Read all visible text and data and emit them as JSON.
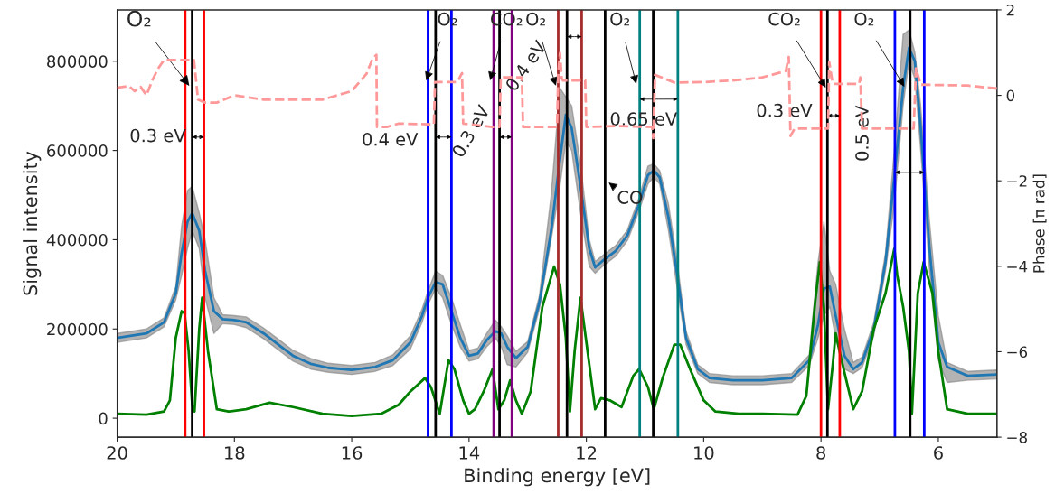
{
  "chart_data": {
    "type": "line",
    "xlabel": "Binding energy [eV]",
    "ylabel": "Signal intensity",
    "y2label": "Phase [π rad]",
    "xlim": [
      20,
      5
    ],
    "xticks": [
      20,
      18,
      16,
      14,
      12,
      10,
      8,
      6
    ],
    "ylim": [
      -42500,
      915000
    ],
    "yticks": [
      0,
      200000,
      400000,
      600000,
      800000
    ],
    "y2lim": [
      -8,
      2
    ],
    "y2ticks": [
      2,
      0,
      {
        "value": -2,
        "label": "−2"
      },
      {
        "value": -4,
        "label": "−4"
      },
      {
        "value": -6,
        "label": "−6"
      },
      {
        "value": -8,
        "label": "−8"
      }
    ],
    "grid": false,
    "series": [
      {
        "color": "#1f77b4",
        "line_style": "solid",
        "x": [
          20.0,
          19.5,
          19.2,
          19.0,
          18.9,
          18.8,
          18.72,
          18.6,
          18.5,
          18.35,
          18.2,
          18.0,
          17.8,
          17.5,
          17.2,
          17.0,
          16.7,
          16.4,
          16.0,
          15.6,
          15.3,
          15.0,
          14.8,
          14.7,
          14.57,
          14.45,
          14.3,
          14.15,
          14.0,
          13.85,
          13.7,
          13.55,
          13.45,
          13.35,
          13.2,
          13.0,
          12.8,
          12.6,
          12.45,
          12.35,
          12.25,
          12.1,
          11.95,
          11.85,
          11.7,
          11.5,
          11.3,
          11.1,
          10.95,
          10.85,
          10.75,
          10.6,
          10.45,
          10.3,
          10.1,
          9.9,
          9.5,
          9.0,
          8.5,
          8.2,
          8.05,
          7.95,
          7.85,
          7.75,
          7.6,
          7.45,
          7.3,
          7.1,
          6.9,
          6.75,
          6.6,
          6.5,
          6.4,
          6.3,
          6.15,
          6.0,
          5.85,
          5.5,
          5.0
        ],
        "values": [
          180000,
          190000,
          215000,
          280000,
          370000,
          440000,
          460000,
          420000,
          330000,
          240000,
          222000,
          220000,
          215000,
          190000,
          160000,
          140000,
          122000,
          113000,
          108000,
          115000,
          130000,
          170000,
          230000,
          270000,
          305000,
          300000,
          240000,
          180000,
          140000,
          145000,
          175000,
          195000,
          190000,
          160000,
          135000,
          160000,
          260000,
          420000,
          580000,
          680000,
          650000,
          520000,
          380000,
          338000,
          355000,
          375000,
          410000,
          480000,
          545000,
          555000,
          540000,
          450000,
          320000,
          180000,
          110000,
          90000,
          85000,
          85000,
          90000,
          130000,
          210000,
          290000,
          295000,
          230000,
          140000,
          110000,
          125000,
          200000,
          350000,
          540000,
          740000,
          830000,
          800000,
          650000,
          380000,
          170000,
          115000,
          95000,
          98000
        ],
        "lower": [
          170000,
          180000,
          205000,
          265000,
          320000,
          380000,
          420000,
          380000,
          270000,
          190000,
          212000,
          210000,
          203000,
          178000,
          148000,
          128000,
          110000,
          103000,
          98000,
          105000,
          118000,
          155000,
          215000,
          255000,
          290000,
          270000,
          210000,
          160000,
          128000,
          133000,
          160000,
          180000,
          160000,
          120000,
          115000,
          148000,
          245000,
          400000,
          520000,
          620000,
          600000,
          460000,
          340000,
          325000,
          343000,
          363000,
          398000,
          465000,
          525000,
          540000,
          525000,
          420000,
          290000,
          165000,
          100000,
          80000,
          75000,
          75000,
          80000,
          118000,
          180000,
          230000,
          250000,
          180000,
          110000,
          100000,
          113000,
          185000,
          330000,
          480000,
          700000,
          800000,
          760000,
          600000,
          330000,
          130000,
          80000,
          85000,
          88000
        ],
        "upper": [
          190000,
          200000,
          225000,
          295000,
          430000,
          510000,
          520000,
          460000,
          400000,
          270000,
          232000,
          230000,
          227000,
          202000,
          172000,
          152000,
          134000,
          123000,
          118000,
          125000,
          142000,
          185000,
          245000,
          285000,
          330000,
          320000,
          270000,
          210000,
          152000,
          157000,
          190000,
          220000,
          205000,
          185000,
          150000,
          172000,
          275000,
          500000,
          740000,
          720000,
          700000,
          570000,
          400000,
          351000,
          367000,
          387000,
          422000,
          495000,
          565000,
          570000,
          555000,
          480000,
          350000,
          195000,
          120000,
          100000,
          95000,
          95000,
          100000,
          142000,
          350000,
          440000,
          330000,
          300000,
          200000,
          125000,
          137000,
          215000,
          370000,
          600000,
          860000,
          870000,
          820000,
          700000,
          440000,
          230000,
          125000,
          105000,
          108000
        ]
      },
      {
        "color": "#008000",
        "line_style": "solid",
        "x": [
          20.0,
          19.5,
          19.2,
          19.1,
          19.0,
          18.9,
          18.85,
          18.78,
          18.72,
          18.68,
          18.6,
          18.55,
          18.45,
          18.3,
          18.1,
          17.8,
          17.4,
          17.0,
          16.5,
          16.0,
          15.5,
          15.2,
          15.0,
          14.75,
          14.65,
          14.5,
          14.35,
          14.25,
          14.1,
          14.0,
          13.9,
          13.75,
          13.6,
          13.5,
          13.4,
          13.3,
          13.2,
          13.1,
          12.95,
          12.75,
          12.55,
          12.45,
          12.35,
          12.28,
          12.2,
          12.1,
          11.95,
          11.85,
          11.75,
          11.6,
          11.4,
          11.2,
          11.1,
          10.95,
          10.85,
          10.7,
          10.5,
          10.4,
          10.2,
          10.0,
          9.8,
          9.4,
          9.0,
          8.4,
          8.25,
          8.1,
          8.02,
          7.95,
          7.88,
          7.8,
          7.75,
          7.65,
          7.45,
          7.3,
          7.1,
          6.9,
          6.75,
          6.7,
          6.6,
          6.5,
          6.45,
          6.35,
          6.25,
          6.1,
          6.0,
          5.85,
          5.5,
          5.0
        ],
        "values": [
          10000,
          8000,
          15000,
          40000,
          180000,
          240000,
          235000,
          150000,
          30000,
          15000,
          200000,
          270000,
          150000,
          20000,
          15000,
          20000,
          35000,
          25000,
          10000,
          5000,
          10000,
          30000,
          60000,
          90000,
          70000,
          10000,
          130000,
          110000,
          40000,
          10000,
          20000,
          60000,
          110000,
          20000,
          40000,
          85000,
          40000,
          10000,
          60000,
          250000,
          340000,
          300000,
          180000,
          15000,
          150000,
          270000,
          120000,
          20000,
          45000,
          40000,
          25000,
          95000,
          110000,
          70000,
          20000,
          90000,
          165000,
          165000,
          100000,
          40000,
          15000,
          10000,
          10000,
          8000,
          50000,
          260000,
          350000,
          250000,
          20000,
          120000,
          190000,
          130000,
          20000,
          60000,
          200000,
          280000,
          380000,
          320000,
          250000,
          150000,
          10000,
          280000,
          350000,
          280000,
          150000,
          20000,
          10000,
          10000
        ]
      },
      {
        "color": "#ff9999",
        "line_style": "dashed",
        "axis": "y2",
        "x": [
          20.0,
          19.8,
          19.7,
          19.6,
          19.5,
          19.4,
          19.3,
          19.2,
          19.0,
          18.69,
          18.62,
          18.5,
          18.3,
          18.0,
          17.5,
          16.5,
          16.0,
          15.75,
          15.65,
          15.58,
          15.57,
          15.4,
          15.2,
          14.6,
          14.58,
          14.2,
          14.12,
          14.1,
          13.6,
          13.48,
          13.46,
          13.1,
          13.08,
          12.5,
          12.48,
          12.45,
          12.42,
          12.4,
          12.02,
          12.0,
          11.5,
          10.88,
          10.86,
          10.83,
          10.5,
          10.0,
          9.5,
          9.0,
          8.6,
          8.55,
          8.52,
          8.45,
          7.88,
          7.86,
          7.8,
          7.35,
          7.33,
          7.3,
          6.42,
          6.38,
          6.3,
          5.5,
          5.0
        ],
        "values": [
          0.18,
          0.22,
          0.1,
          0.2,
          0.0,
          0.35,
          0.63,
          0.83,
          0.83,
          0.83,
          -0.1,
          -0.17,
          -0.17,
          0.0,
          -0.1,
          -0.1,
          0.1,
          0.5,
          0.84,
          0.95,
          -0.74,
          -0.74,
          -0.66,
          -0.68,
          0.31,
          0.31,
          0.52,
          -0.66,
          -0.74,
          -0.74,
          0.42,
          0.42,
          -0.74,
          -0.74,
          0.5,
          0.99,
          0.4,
          0.35,
          0.35,
          -0.74,
          -0.72,
          -0.74,
          -1.0,
          0.48,
          0.3,
          0.31,
          0.35,
          0.42,
          0.57,
          0.9,
          -0.95,
          -0.78,
          -0.78,
          0.78,
          0.27,
          0.27,
          0.42,
          -0.78,
          -0.78,
          0.63,
          0.25,
          0.23,
          0.16
        ]
      }
    ],
    "ref_lines": [
      {
        "axis": "x",
        "value": 18.84,
        "color": "#ff0000"
      },
      {
        "axis": "x",
        "value": 18.72,
        "color": "#000000"
      },
      {
        "axis": "x",
        "value": 18.52,
        "color": "#ff0000"
      },
      {
        "axis": "x",
        "value": 14.7,
        "color": "#0000ff"
      },
      {
        "axis": "x",
        "value": 14.57,
        "color": "#000000"
      },
      {
        "axis": "x",
        "value": 14.3,
        "color": "#0000ff"
      },
      {
        "axis": "x",
        "value": 13.58,
        "color": "#800080"
      },
      {
        "axis": "x",
        "value": 13.48,
        "color": "#000000"
      },
      {
        "axis": "x",
        "value": 13.27,
        "color": "#800080"
      },
      {
        "axis": "x",
        "value": 12.48,
        "color": "#a52a2a"
      },
      {
        "axis": "x",
        "value": 12.33,
        "color": "#000000"
      },
      {
        "axis": "x",
        "value": 12.08,
        "color": "#a52a2a"
      },
      {
        "axis": "x",
        "value": 11.68,
        "color": "#000000"
      },
      {
        "axis": "x",
        "value": 11.09,
        "color": "#008080"
      },
      {
        "axis": "x",
        "value": 10.86,
        "color": "#000000"
      },
      {
        "axis": "x",
        "value": 10.44,
        "color": "#008080"
      },
      {
        "axis": "x",
        "value": 8.0,
        "color": "#ff0000"
      },
      {
        "axis": "x",
        "value": 7.89,
        "color": "#000000"
      },
      {
        "axis": "x",
        "value": 7.68,
        "color": "#ff0000"
      },
      {
        "axis": "x",
        "value": 6.74,
        "color": "#0000ff"
      },
      {
        "axis": "x",
        "value": 6.48,
        "color": "#000000"
      },
      {
        "axis": "x",
        "value": 6.24,
        "color": "#0000ff"
      }
    ],
    "annotations": [
      {
        "text": "O₂",
        "x": 18.77,
        "y": 745000
      },
      {
        "text": "O₂",
        "x": 14.73,
        "y": 757000
      },
      {
        "text": "CO₂",
        "x": 13.64,
        "y": 757000
      },
      {
        "text": "O₂",
        "x": 12.52,
        "y": 745000
      },
      {
        "text": "O₂",
        "x": 11.15,
        "y": 749000
      },
      {
        "text": "CO",
        "x": 11.62,
        "y": 528000
      },
      {
        "text": "CO₂",
        "x": 7.92,
        "y": 741000
      },
      {
        "text": "O₂",
        "x": 6.58,
        "y": 743000
      },
      {
        "text": "0.3 eV",
        "x": 18.72,
        "y": 630000
      },
      {
        "text": "0.4 eV",
        "x": 14.57,
        "y": 630000
      },
      {
        "text": "0.3 eV",
        "x": 13.48,
        "y": 630000
      },
      {
        "text": "0.4 eV",
        "x": 12.33,
        "y": 855000
      },
      {
        "text": "0.65 eV",
        "x": 11.09,
        "y": 715000
      },
      {
        "text": "0.3 eV",
        "x": 7.89,
        "y": 678000
      },
      {
        "text": "0.5 eV",
        "x": 6.74,
        "y": 551000
      }
    ]
  }
}
